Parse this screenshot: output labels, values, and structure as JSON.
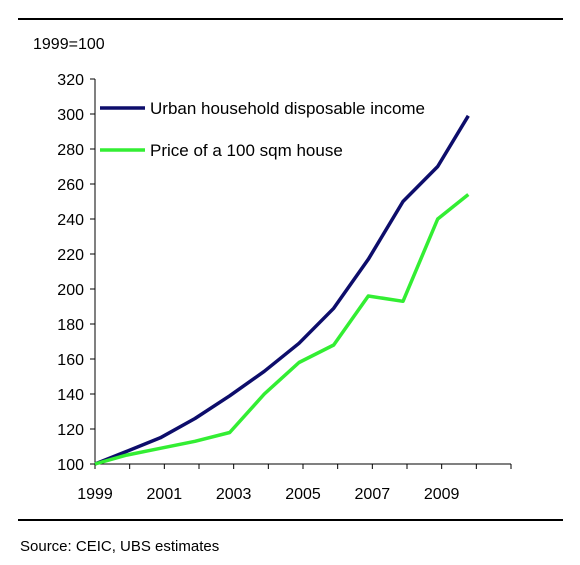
{
  "chart_data": {
    "type": "line",
    "unit_label": "1999=100",
    "x_tick_labels": [
      "1999",
      "2001",
      "2003",
      "2005",
      "2007",
      "2009"
    ],
    "y_tick_labels": [
      "100",
      "120",
      "140",
      "160",
      "180",
      "200",
      "220",
      "240",
      "260",
      "280",
      "300",
      "320"
    ],
    "ylim": [
      100,
      320
    ],
    "xlim": [
      1999,
      2010.3
    ],
    "grid": false,
    "legend_position": "top-left",
    "series": [
      {
        "name": "Urban household disposable income",
        "color": "#0d0d6b",
        "x": [
          1999,
          2000,
          2001,
          2002,
          2003,
          2004,
          2005,
          2006,
          2007,
          2008,
          2009,
          2010
        ],
        "values": [
          100,
          107,
          115,
          126,
          139,
          153,
          169,
          189,
          217,
          250,
          270,
          299
        ]
      },
      {
        "name": "Price of a 100 sqm house",
        "color": "#33ee33",
        "x": [
          1999,
          2000,
          2001,
          2002,
          2003,
          2004,
          2005,
          2006,
          2007,
          2008,
          2009,
          2010
        ],
        "values": [
          100,
          105,
          109,
          113,
          118,
          140,
          158,
          168,
          196,
          193,
          240,
          254
        ]
      }
    ]
  },
  "source": "Source: CEIC, UBS estimates"
}
